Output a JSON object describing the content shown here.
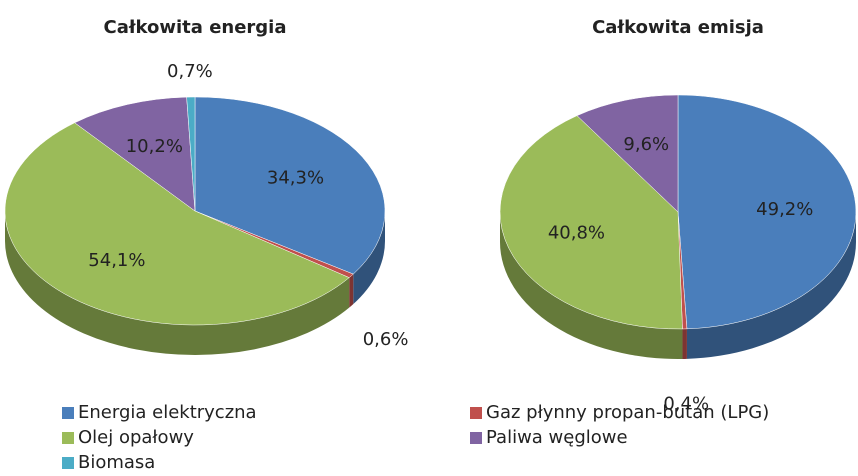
{
  "chart_data": [
    {
      "type": "pie",
      "title": "Całkowita energia",
      "categories": [
        "Energia elektryczna",
        "Gaz płynny propan-butan (LPG)",
        "Olej opałowy",
        "Paliwa węglowe",
        "Biomasa"
      ],
      "values": [
        34.3,
        0.6,
        54.1,
        10.2,
        0.7
      ],
      "value_labels": [
        "34,3%",
        "0,6%",
        "54,1%",
        "10,2%",
        "0,7%"
      ],
      "colors": [
        "#4a7ebb",
        "#c0504d",
        "#9bbb59",
        "#8064a2",
        "#4bacc6"
      ]
    },
    {
      "type": "pie",
      "title": "Całkowita emisja",
      "categories": [
        "Energia elektryczna",
        "Gaz płynny propan-butan (LPG)",
        "Olej opałowy",
        "Paliwa węglowe"
      ],
      "values": [
        49.2,
        0.4,
        40.8,
        9.6
      ],
      "value_labels": [
        "49,2%",
        "0,4%",
        "40,8%",
        "9,6%"
      ],
      "colors": [
        "#4a7ebb",
        "#c0504d",
        "#9bbb59",
        "#8064a2"
      ]
    }
  ]
}
